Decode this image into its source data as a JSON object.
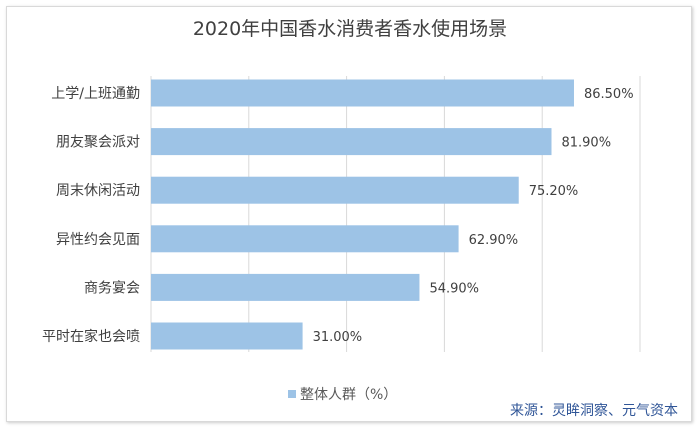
{
  "chart_data": {
    "type": "bar",
    "orientation": "horizontal",
    "title": "2020年中国香水消费者香水使用场景",
    "categories": [
      "上学/上班通勤",
      "朋友聚会派对",
      "周末休闲活动",
      "异性约会见面",
      "商务宴会",
      "平时在家也会喷"
    ],
    "series": [
      {
        "name": "整体人群（%）",
        "values": [
          86.5,
          81.9,
          75.2,
          62.9,
          54.9,
          31.0
        ],
        "color": "#9dc3e6"
      }
    ],
    "data_labels": [
      "86.50%",
      "81.90%",
      "75.20%",
      "62.90%",
      "54.90%",
      "31.00%"
    ],
    "xlim": [
      0,
      100
    ],
    "grid": true,
    "grid_step": 20,
    "legend_position": "bottom",
    "xlabel": "",
    "ylabel": ""
  },
  "source": "来源：灵眸洞察、元气资本"
}
